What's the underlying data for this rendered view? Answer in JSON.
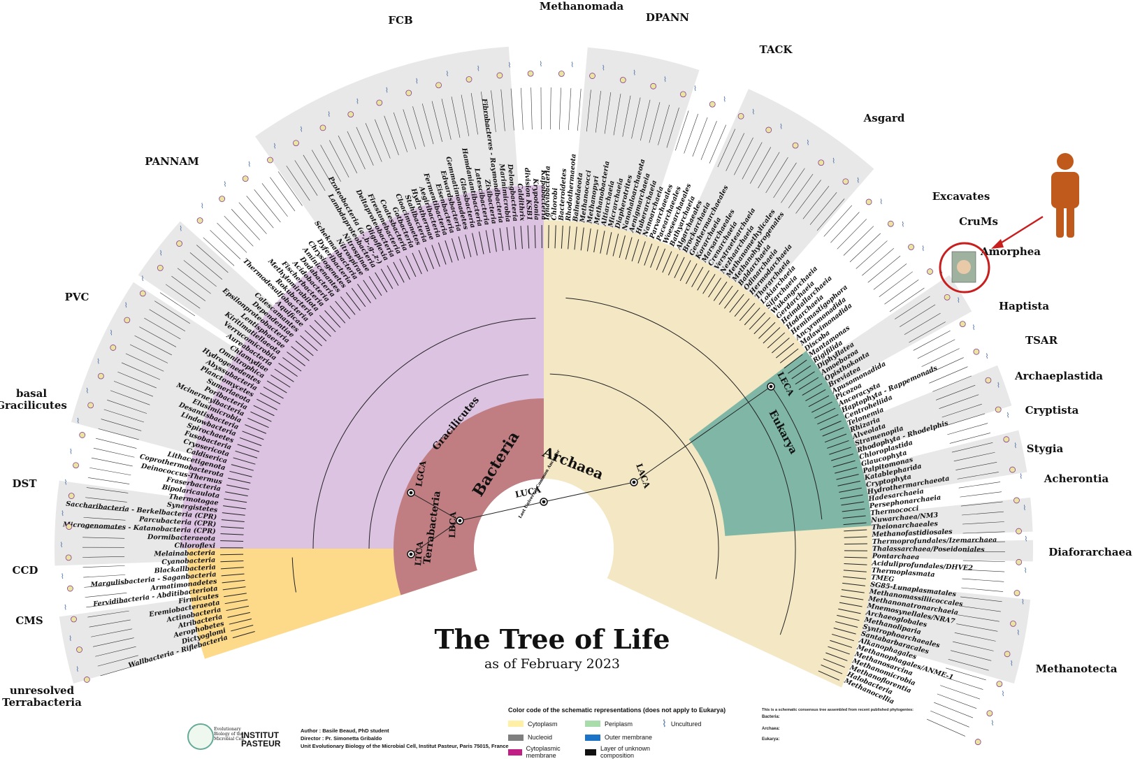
{
  "title": "The Tree of Life",
  "subtitle": "as of February 2023",
  "domains": {
    "bacteria": "Bacteria",
    "archaea": "Archaea",
    "eukarya": "Eukarya",
    "gracilicutes": "Gracilicutes",
    "terrabacteria": "Terrabacteria"
  },
  "nodes": {
    "luca": "LUCA",
    "luca_full": "Last Universal Common Ancestor",
    "lbca": "LBCA",
    "lgca": "LGCA",
    "ltca": "LTCA",
    "laca": "LACA",
    "leca": "LECA"
  },
  "clades": {
    "fcb": "FCB",
    "methanomada": "Methanomada",
    "dpann": "DPANN",
    "tack": "TACK",
    "asgard": "Asgard",
    "pannam": "PANNAM",
    "pvc": "PVC",
    "basal_gracilicutes": "basal\nGracilicutes",
    "dst": "DST",
    "ccd": "CCD",
    "cms": "CMS",
    "unresolved_terrabacteria": "unresolved\nTerrabacteria",
    "excavates": "Excavates",
    "crums": "CruMs",
    "amorphea": "Amorphea",
    "haptista": "Haptista",
    "tsar": "TSAR",
    "archaeplastida": "Archaeplastida",
    "cryptista": "Cryptista",
    "stygia": "Stygia",
    "acherontia": "Acherontia",
    "diaforarchaea": "Diaforarchaea",
    "methanotecta": "Methanotecta"
  },
  "taxa": [
    "Wallbacteria - Riflebacteria",
    "Dictyoglomi",
    "Aerophobetes",
    "Atribacteria",
    "Actinobacteria",
    "Eremiobacteraeota",
    "Firmicutes",
    "Fervidibacteria - Abditibacteriota",
    "Armatimonadetes",
    "Margulisbacteria - Saganbacteria",
    "Blackallbacteria",
    "Cyanobacteria",
    "Melainabacteria",
    "Chloroflexi",
    "Dormibacteraeota",
    "Microgenomates - Katanobacteria (CPR)",
    "Parcubacteria (CPR)",
    "Saccharibacteria - Berkelbacteria (CPR)",
    "Synergistetes",
    "Thermotogae",
    "Bipolaricaulota",
    "Fraserbacteria",
    "Deinococcus-Thermus",
    "Coprothermobacterota",
    "Lithacetigenota",
    "Caldiserica",
    "Cryosericota",
    "Fusobacteria",
    "Spirochaetes",
    "Lindowbacteria",
    "Desantisbacteria",
    "Elusimicrobia",
    "Mcinerneyibacteria",
    "Poribacteria",
    "Sumerlaeota",
    "Planctomycetes",
    "Abyssubacteria",
    "Hydrogenedentes",
    "Omnitrophica",
    "Chlamydiae",
    "Aureabacteria",
    "Verrucomicrobia",
    "Kiritimatiellaeota",
    "Lentisphaerae",
    "Epsilonproteobacteria",
    "Dependentiae",
    "Calescamantes",
    "Aquificae",
    "Thermodesulfobacteria",
    "Rokubacteria",
    "Methylomirabilota",
    "Fischerbacteria",
    "Acidobacteria",
    "Dadabacteria",
    "Aminicenantes",
    "Chrysiogenetes",
    "Dyferibacteria",
    "Schekmanbacteria",
    "Nitrospirae",
    "Nitrospinae",
    "Lambdaproteobacteria",
    "Proteobacteria (a-,b-,g-,z-)",
    "Oligoflexia",
    "Deltaproteobacteria",
    "Firestonebacteria",
    "Coatesbacteria",
    "Gotbacteria",
    "Cloacimonetes",
    "Stahlbacteria",
    "Hydrothermae",
    "Aegiribacteria",
    "Fermentibacteria",
    "Eisenbacteria",
    "Edwardsbacteria",
    "Gemmatimonadetes",
    "Glassbacteria",
    "Hamdaniantibacteria",
    "Latescibacteria",
    "Zixibacteria",
    "Fibrobacteres - Raymondbacteria",
    "Marinimicrobia",
    "Delongbacteria",
    "Caldithrix",
    "division KSB1",
    "Krypotonia",
    "Kapabacteria",
    "Ignavibacteria",
    "Chlorobi",
    "Bacteroidetes",
    "Rhodothermaeota",
    "Balneolaeota",
    "Methanococci",
    "Methanopyri",
    "Methanobacteria",
    "Altiarchaeia",
    "Micrarchaeia",
    "Diapherotrites",
    "Nanohaloarchaeota",
    "Aenigmarchaeia",
    "Huberarchaeia",
    "Nanoarchaeia",
    "Parvarchaeales",
    "Pacearchaeales",
    "Woesearchaeales",
    "Bathyarchaeia",
    "Algarchaeales",
    "Brockarchaeia",
    "Geothermarchaeales",
    "Korarchaeia",
    "Marsarchaeales",
    "Crenarchaeia",
    "Verstraetearchaeia",
    "Nezhaarchaeia",
    "Methanomethylicales",
    "Methanohydrogenales",
    "Baldarchaeia",
    "Odinarchaeia",
    "Hermodarchaeia",
    "Thorarchaeia",
    "Lokiarchaeia",
    "Sifarchaeia",
    "Wukongarchaeia",
    "Gerdarchaeia",
    "Heimdallarchaeia",
    "Hodarchaeia",
    "Hemimastigophora",
    "Ancyromonadida",
    "Malawimonadida",
    "Discoba",
    "Mantamonas",
    "Rigifilida",
    "Diphyllatea",
    "Amoebozoa",
    "Opisthokonta",
    "Breviatea",
    "Apusomonadida",
    "Picozoa",
    "Ancoracysta",
    "Haptophyta - Rappemonads",
    "Centroheliida",
    "Telonemia",
    "Rhizaria",
    "Alveolata",
    "Stramenopila",
    "Rhodophyta - Rhodelphis",
    "Chloroplastida",
    "Glaucophyta",
    "Palpitomonas",
    "Katablepharida",
    "Cryptophyta",
    "Hydrothermarchaeota",
    "Hadesarchaeia",
    "Persephonarchaeia",
    "Thermococci",
    "Nuwarchaea/NM3",
    "Theionarchaeales",
    "Methanofastidiosales",
    "Thermoprofundales/Izemarchaea",
    "Thalassarchaea/Poseidoniales",
    "Pontarchaea",
    "Aciduliprofundales/DHVE2",
    "Thermoplasmata",
    "TMEG",
    "SG85-Lunaplasmatales",
    "Methanomassiliicoccales",
    "Methanonatronarchaeia",
    "Mnemosynellales/NRA7",
    "Archaeoglobales",
    "Methanoliparia",
    "Syntrophoarchaeales",
    "Santabarbaracales",
    "Alkanophagales",
    "Methanophagales/ANME-1",
    "Methanosarcina",
    "Methanomicrobia",
    "Methanoflorentia",
    "Halobacteria",
    "Methanocellia"
  ],
  "colors": {
    "bacteria_gracilicutes": "#dcc3e2",
    "bacteria_terrabacteria": "#fdd98a",
    "bacteria_core": "#c07e82",
    "archaea": "#f3e7c4",
    "eukarya": "#7fb6a5",
    "clade_band": "#e8e8e8",
    "human": "#c05a1c",
    "highlight": "#c81e1e"
  },
  "legend": {
    "title": "Color code of the schematic representations (does not apply to Eukarya)",
    "items": [
      {
        "label": "Cytoplasm",
        "color": "#fff0a6"
      },
      {
        "label": "Nucleoid",
        "color": "#7f7f7f"
      },
      {
        "label": "Cytoplasmic membrane",
        "color": "#c21f85"
      },
      {
        "label": "Periplasm",
        "color": "#a9dcab"
      },
      {
        "label": "Outer membrane",
        "color": "#1a73c6"
      },
      {
        "label": "Layer of unknown composition",
        "color": "#111111"
      }
    ],
    "uncultured": "Uncultured"
  },
  "credits": {
    "logo_text": "Evolutionary Biology of the Microbial Cell",
    "pasteur": "INSTITUT\nPASTEUR",
    "author": "Author : Basile Beaud, PhD student",
    "director": "Director : Pr. Simonetta Gribaldo",
    "unit": "Unit Evolutionary Biology of the Microbial Cell, Institut Pasteur, Paris 75015, France"
  },
  "references": {
    "intro": "This is a schematic consensus tree assembled from recent published phylogenies:",
    "bacteria": "Bacteria:",
    "archaea": "Archaea:",
    "eukarya": "Eukarya:"
  }
}
